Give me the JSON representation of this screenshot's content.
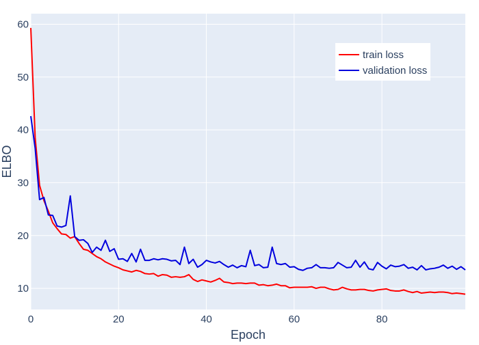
{
  "chart_data": {
    "type": "line",
    "title": "",
    "xlabel": "Epoch",
    "ylabel": "ELBO",
    "xlim": [
      0,
      99
    ],
    "ylim": [
      6,
      62
    ],
    "xticks": [
      0,
      20,
      40,
      60,
      80
    ],
    "yticks": [
      10,
      20,
      30,
      40,
      50,
      60
    ],
    "grid": true,
    "legend_position": "top-right",
    "colors": {
      "plot_background": "#e5ecf6",
      "grid": "#ffffff",
      "text": "#2a3f5f"
    },
    "series": [
      {
        "name": "train loss",
        "color": "#ff0000",
        "x": [
          0,
          1,
          2,
          3,
          4,
          5,
          6,
          7,
          8,
          9,
          10,
          11,
          12,
          13,
          14,
          15,
          16,
          17,
          18,
          19,
          20,
          21,
          22,
          23,
          24,
          25,
          26,
          27,
          28,
          29,
          30,
          31,
          32,
          33,
          34,
          35,
          36,
          37,
          38,
          39,
          40,
          41,
          42,
          43,
          44,
          45,
          46,
          47,
          48,
          49,
          50,
          51,
          52,
          53,
          54,
          55,
          56,
          57,
          58,
          59,
          60,
          61,
          62,
          63,
          64,
          65,
          66,
          67,
          68,
          69,
          70,
          71,
          72,
          73,
          74,
          75,
          76,
          77,
          78,
          79,
          80,
          81,
          82,
          83,
          84,
          85,
          86,
          87,
          88,
          89,
          90,
          91,
          92,
          93,
          94,
          95,
          96,
          97,
          98,
          99
        ],
        "values": [
          59.3,
          38.5,
          29.5,
          26.6,
          24.6,
          22.4,
          21.3,
          20.3,
          20.2,
          19.5,
          19.8,
          18.5,
          17.4,
          17.2,
          16.6,
          16.0,
          15.6,
          15.0,
          14.6,
          14.2,
          13.9,
          13.5,
          13.3,
          13.1,
          13.4,
          13.2,
          12.8,
          12.7,
          12.8,
          12.3,
          12.6,
          12.5,
          12.1,
          12.2,
          12.1,
          12.2,
          12.6,
          11.7,
          11.3,
          11.6,
          11.4,
          11.2,
          11.5,
          11.9,
          11.2,
          11.1,
          10.9,
          11.0,
          11.0,
          10.9,
          11.0,
          11.0,
          10.6,
          10.7,
          10.5,
          10.6,
          10.8,
          10.5,
          10.5,
          10.1,
          10.2,
          10.2,
          10.2,
          10.2,
          10.3,
          10.0,
          10.2,
          10.2,
          9.9,
          9.7,
          9.8,
          10.2,
          9.9,
          9.7,
          9.7,
          9.8,
          9.8,
          9.6,
          9.5,
          9.7,
          9.8,
          9.9,
          9.6,
          9.5,
          9.5,
          9.7,
          9.4,
          9.2,
          9.4,
          9.1,
          9.2,
          9.3,
          9.2,
          9.3,
          9.3,
          9.2,
          9.0,
          9.1,
          9.0,
          8.9
        ]
      },
      {
        "name": "validation loss",
        "color": "#0000dd",
        "x": [
          0,
          1,
          2,
          3,
          4,
          5,
          6,
          7,
          8,
          9,
          10,
          11,
          12,
          13,
          14,
          15,
          16,
          17,
          18,
          19,
          20,
          21,
          22,
          23,
          24,
          25,
          26,
          27,
          28,
          29,
          30,
          31,
          32,
          33,
          34,
          35,
          36,
          37,
          38,
          39,
          40,
          41,
          42,
          43,
          44,
          45,
          46,
          47,
          48,
          49,
          50,
          51,
          52,
          53,
          54,
          55,
          56,
          57,
          58,
          59,
          60,
          61,
          62,
          63,
          64,
          65,
          66,
          67,
          68,
          69,
          70,
          71,
          72,
          73,
          74,
          75,
          76,
          77,
          78,
          79,
          80,
          81,
          82,
          83,
          84,
          85,
          86,
          87,
          88,
          89,
          90,
          91,
          92,
          93,
          94,
          95,
          96,
          97,
          98,
          99
        ],
        "values": [
          42.6,
          36.5,
          26.8,
          27.2,
          23.9,
          23.8,
          21.8,
          21.6,
          21.9,
          27.5,
          19.8,
          19.1,
          19.2,
          18.5,
          16.8,
          17.8,
          17.2,
          19.1,
          17.0,
          17.5,
          15.5,
          15.6,
          15.1,
          16.6,
          15.0,
          17.4,
          15.3,
          15.3,
          15.6,
          15.4,
          15.6,
          15.5,
          15.2,
          15.3,
          14.5,
          17.8,
          14.7,
          15.5,
          14.0,
          14.5,
          15.3,
          15.0,
          14.8,
          15.1,
          14.5,
          14.0,
          14.4,
          13.9,
          14.3,
          14.1,
          17.2,
          14.3,
          14.5,
          13.9,
          14.0,
          17.8,
          14.7,
          14.5,
          14.7,
          14.0,
          14.1,
          13.6,
          13.4,
          13.8,
          13.9,
          14.5,
          13.9,
          13.9,
          13.8,
          13.9,
          14.9,
          14.4,
          13.9,
          14.0,
          15.3,
          14.0,
          15.0,
          13.7,
          13.5,
          14.9,
          14.2,
          13.7,
          14.4,
          14.1,
          14.2,
          14.5,
          13.8,
          14.0,
          13.5,
          14.3,
          13.5,
          13.7,
          13.8,
          14.0,
          14.4,
          13.8,
          14.2,
          13.6,
          14.1,
          13.5
        ]
      }
    ]
  }
}
